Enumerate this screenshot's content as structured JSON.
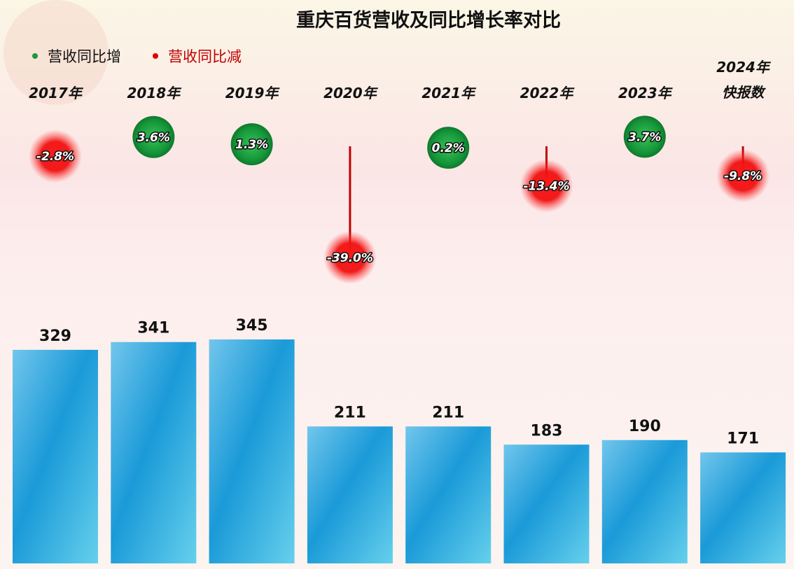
{
  "chart_data": {
    "type": "bar",
    "title": "重庆百货营收及同比增长率对比",
    "legend": [
      {
        "label": "营收同比增",
        "color": "#1a9a3a"
      },
      {
        "label": "营收同比减",
        "color": "#e00000"
      }
    ],
    "categories": [
      [
        "2017年"
      ],
      [
        "2018年"
      ],
      [
        "2019年"
      ],
      [
        "2020年"
      ],
      [
        "2021年"
      ],
      [
        "2022年"
      ],
      [
        "2023年"
      ],
      [
        "2024年",
        "快报数"
      ]
    ],
    "series": [
      {
        "values": [
          329,
          341,
          345,
          211,
          211,
          183,
          190,
          171
        ]
      },
      {
        "values": [
          -2.8,
          3.6,
          1.3,
          -39.0,
          0.2,
          -13.4,
          3.7,
          -9.8
        ],
        "labels": [
          "-2.8%",
          "3.6%",
          "1.3%",
          "-39.0%",
          "0.2%",
          "-13.4%",
          "3.7%",
          "-9.8%"
        ]
      }
    ],
    "colors": {
      "bar": "#29a3df",
      "increase": "#1a9a3a",
      "decrease": "#e00000",
      "stem": "#c40000"
    }
  }
}
